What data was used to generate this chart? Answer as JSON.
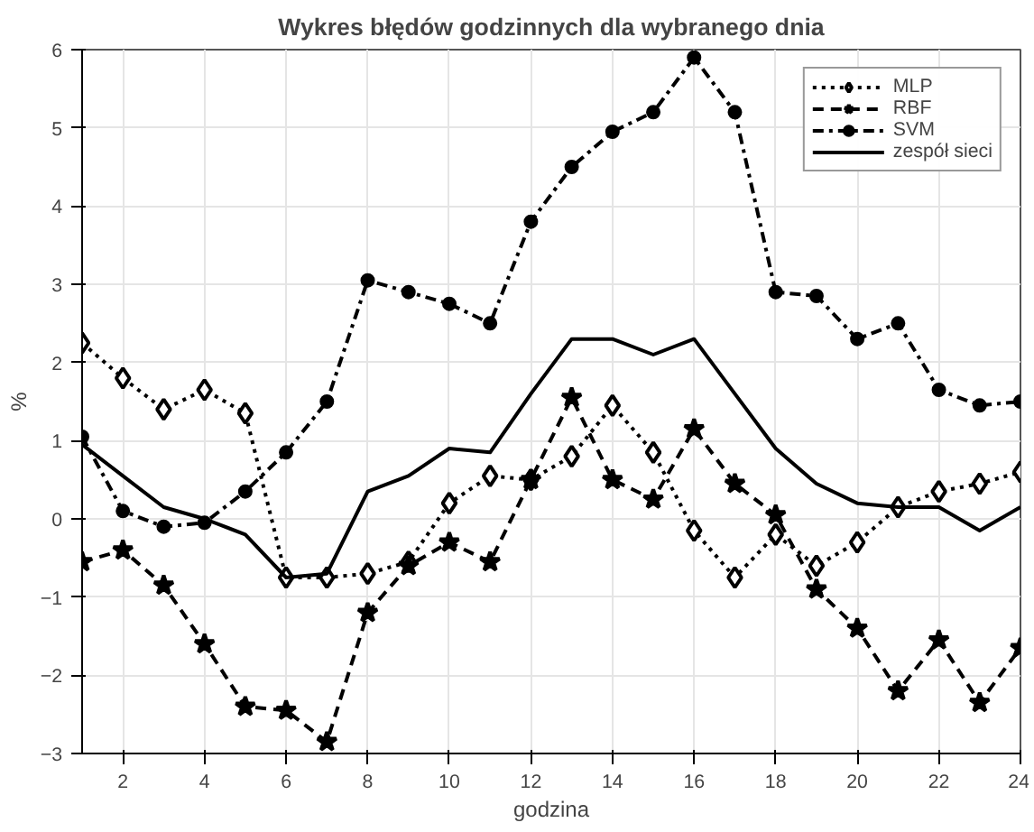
{
  "chart_data": {
    "type": "line",
    "title": "Wykres błędów godzinnych dla wybranego dnia",
    "xlabel": "godzina",
    "ylabel": "%",
    "x": [
      1,
      2,
      3,
      4,
      5,
      6,
      7,
      8,
      9,
      10,
      11,
      12,
      13,
      14,
      15,
      16,
      17,
      18,
      19,
      20,
      21,
      22,
      23,
      24
    ],
    "xlim": [
      1,
      24
    ],
    "xticks": [
      2,
      4,
      6,
      8,
      10,
      12,
      14,
      16,
      18,
      20,
      22,
      24
    ],
    "ylim": [
      -3,
      6
    ],
    "yticks": [
      -3,
      -2,
      -1,
      0,
      1,
      2,
      3,
      4,
      5,
      6
    ],
    "grid": true,
    "legend": "top right",
    "series": [
      {
        "name": "MLP",
        "color": "#000000",
        "marker": "diamond",
        "line_style": "dotted",
        "values": [
          2.25,
          1.8,
          1.4,
          1.65,
          1.35,
          -0.75,
          -0.75,
          -0.7,
          -0.55,
          0.2,
          0.55,
          0.5,
          0.8,
          1.45,
          0.85,
          -0.15,
          -0.75,
          -0.2,
          -0.6,
          -0.3,
          0.15,
          0.35,
          0.45,
          0.6
        ]
      },
      {
        "name": "RBF",
        "color": "#000000",
        "marker": "star",
        "line_style": "dashed",
        "values": [
          -0.55,
          -0.4,
          -0.85,
          -1.6,
          -2.4,
          -2.45,
          -2.85,
          -1.2,
          -0.6,
          -0.3,
          -0.55,
          0.5,
          1.55,
          0.5,
          0.25,
          1.15,
          0.45,
          0.05,
          -0.9,
          -1.4,
          -2.2,
          -1.55,
          -2.35,
          -1.65
        ]
      },
      {
        "name": "SVM",
        "color": "#000000",
        "marker": "circle",
        "line_style": "dashdot",
        "values": [
          1.05,
          0.1,
          -0.1,
          -0.05,
          0.35,
          0.85,
          1.5,
          3.05,
          2.9,
          2.75,
          2.5,
          3.8,
          4.5,
          4.95,
          5.2,
          5.9,
          5.2,
          2.9,
          2.85,
          2.3,
          2.5,
          1.65,
          1.45,
          1.5
        ]
      },
      {
        "name": "zespół sieci",
        "color": "#000000",
        "marker": "none",
        "line_style": "solid",
        "values": [
          0.95,
          0.55,
          0.15,
          0.0,
          -0.2,
          -0.75,
          -0.7,
          0.35,
          0.55,
          0.9,
          0.85,
          1.6,
          2.3,
          2.3,
          2.1,
          2.3,
          1.6,
          0.9,
          0.45,
          0.2,
          0.15,
          0.15,
          -0.15,
          0.15
        ]
      }
    ]
  }
}
